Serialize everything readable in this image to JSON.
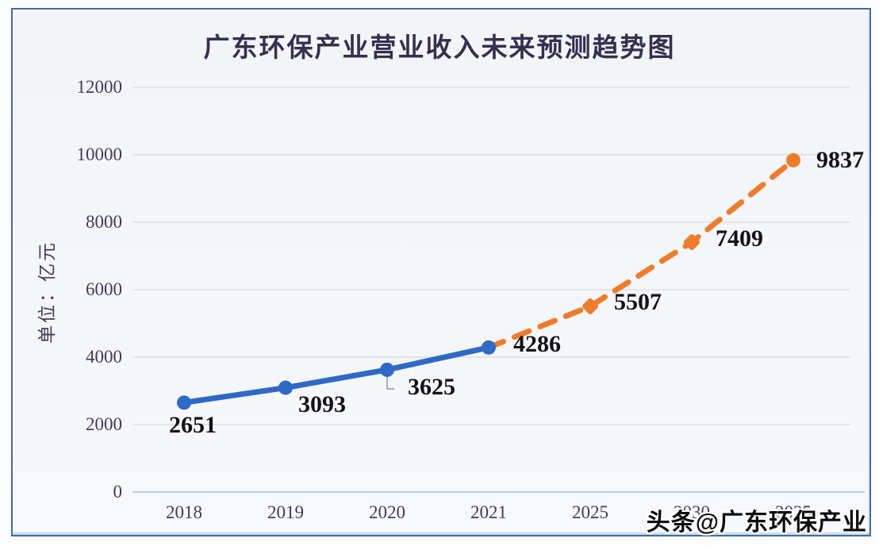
{
  "title": "广东环保产业营业收入未来预测趋势图",
  "watermark": "头条@广东环保产业",
  "chart_data": {
    "type": "line",
    "title": "广东环保产业营业收入未来预测趋势图",
    "xlabel": "",
    "ylabel": "单位：亿元",
    "categories": [
      "2018",
      "2019",
      "2020",
      "2021",
      "2025",
      "2030",
      "2035"
    ],
    "y_ticks": [
      0,
      2000,
      4000,
      6000,
      8000,
      10000,
      12000
    ],
    "ylim": [
      0,
      12000
    ],
    "grid": true,
    "legend": "none",
    "series": [
      {
        "id": "actual-revenue",
        "line_style": "solid",
        "marker": "circle",
        "color": "#2e6ac5",
        "start_index": 0,
        "values": [
          2651,
          3093,
          3625,
          4286
        ]
      },
      {
        "id": "forecast-revenue",
        "line_style": "dashed",
        "marker": "diamond",
        "color": "#ec7d2d",
        "start_index": 3,
        "values": [
          4286,
          5507,
          7409,
          9837
        ]
      }
    ],
    "data_labels": [
      2651,
      3093,
      3625,
      4286,
      5507,
      7409,
      9837
    ]
  },
  "colors": {
    "actual_line": "#2e6ac5",
    "forecast_line": "#ec7d2d",
    "gridline": "#d8dade",
    "baseline": "#b8cde2",
    "frame_border": "#4a699a",
    "tick_text": "#433a5e",
    "label_text": "#151019"
  }
}
